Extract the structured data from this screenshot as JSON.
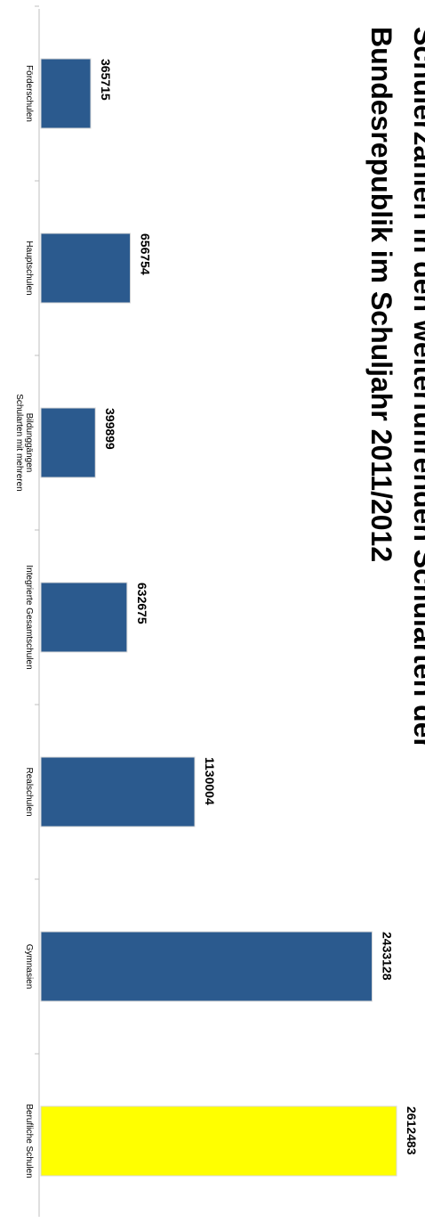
{
  "chart_data": {
    "type": "bar",
    "orientation": "horizontal",
    "title_lines": [
      "Schülerzahlen in den weiterführenden Schularten der",
      "Bundesrepublik im Schuljahr 2011/2012"
    ],
    "categories": [
      [
        "Förderschulen"
      ],
      [
        "Hauptschulen"
      ],
      [
        "Schularten mit mehreren",
        "Bildunggängen"
      ],
      [
        "Integrierte Gesamtschulen"
      ],
      [
        "Realschulen"
      ],
      [
        "Gymnasien"
      ],
      [
        "Berufliche Schulen"
      ]
    ],
    "values": [
      365715,
      656754,
      399899,
      632675,
      1130004,
      2433128,
      2612483
    ],
    "value_labels": [
      "365715",
      "656754",
      "399899",
      "632675",
      "1130004",
      "2433128",
      "2612483"
    ],
    "bar_colors": [
      "#2b5a8e",
      "#2b5a8e",
      "#2b5a8e",
      "#2b5a8e",
      "#2b5a8e",
      "#2b5a8e",
      "#ffff00"
    ],
    "value_axis_range": [
      0,
      2612483
    ],
    "grid": false,
    "legend": "none"
  }
}
